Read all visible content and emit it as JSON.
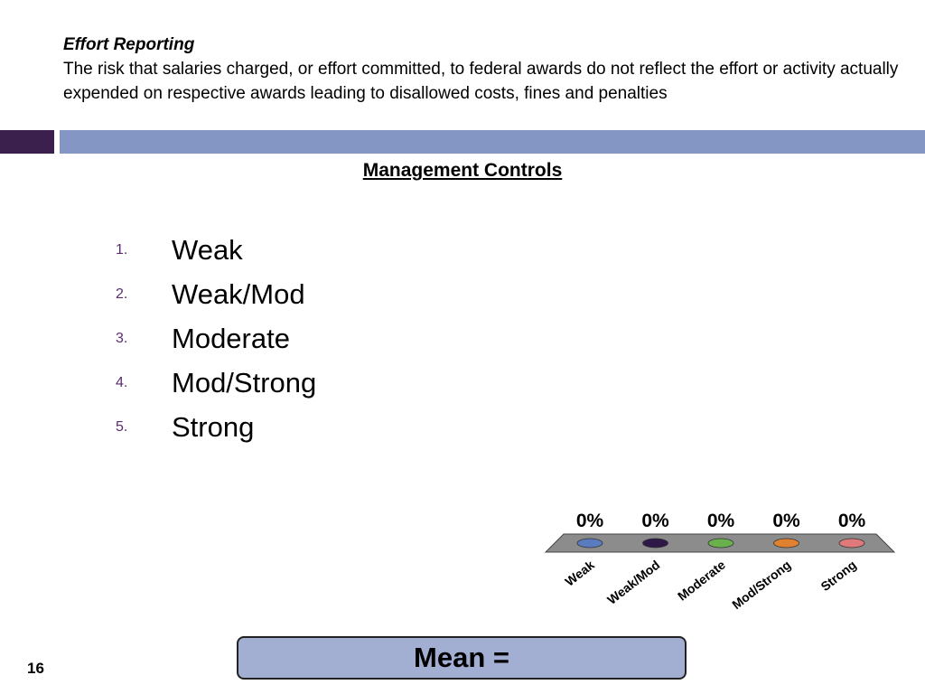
{
  "header": {
    "title": "Effort Reporting",
    "description": "The risk that salaries charged, or effort committed, to federal awards do not reflect the effort or activity actually expended on respective awards leading to disallowed costs, fines and penalties"
  },
  "section_title": "Management Controls",
  "options": [
    {
      "number": "1.",
      "label": "Weak"
    },
    {
      "number": "2.",
      "label": "Weak/Mod"
    },
    {
      "number": "3.",
      "label": "Moderate"
    },
    {
      "number": "4.",
      "label": "Mod/Strong"
    },
    {
      "number": "5.",
      "label": "Strong"
    }
  ],
  "chart_data": {
    "type": "bar",
    "categories": [
      "Weak",
      "Weak/Mod",
      "Moderate",
      "Mod/Strong",
      "Strong"
    ],
    "values": [
      0,
      0,
      0,
      0,
      0
    ],
    "data_labels": [
      "0%",
      "0%",
      "0%",
      "0%",
      "0%"
    ],
    "colors": [
      "#5b7bbf",
      "#2e1848",
      "#6ab04c",
      "#e0812f",
      "#e07a7a"
    ]
  },
  "mean_label": "Mean =",
  "page_number": "16"
}
